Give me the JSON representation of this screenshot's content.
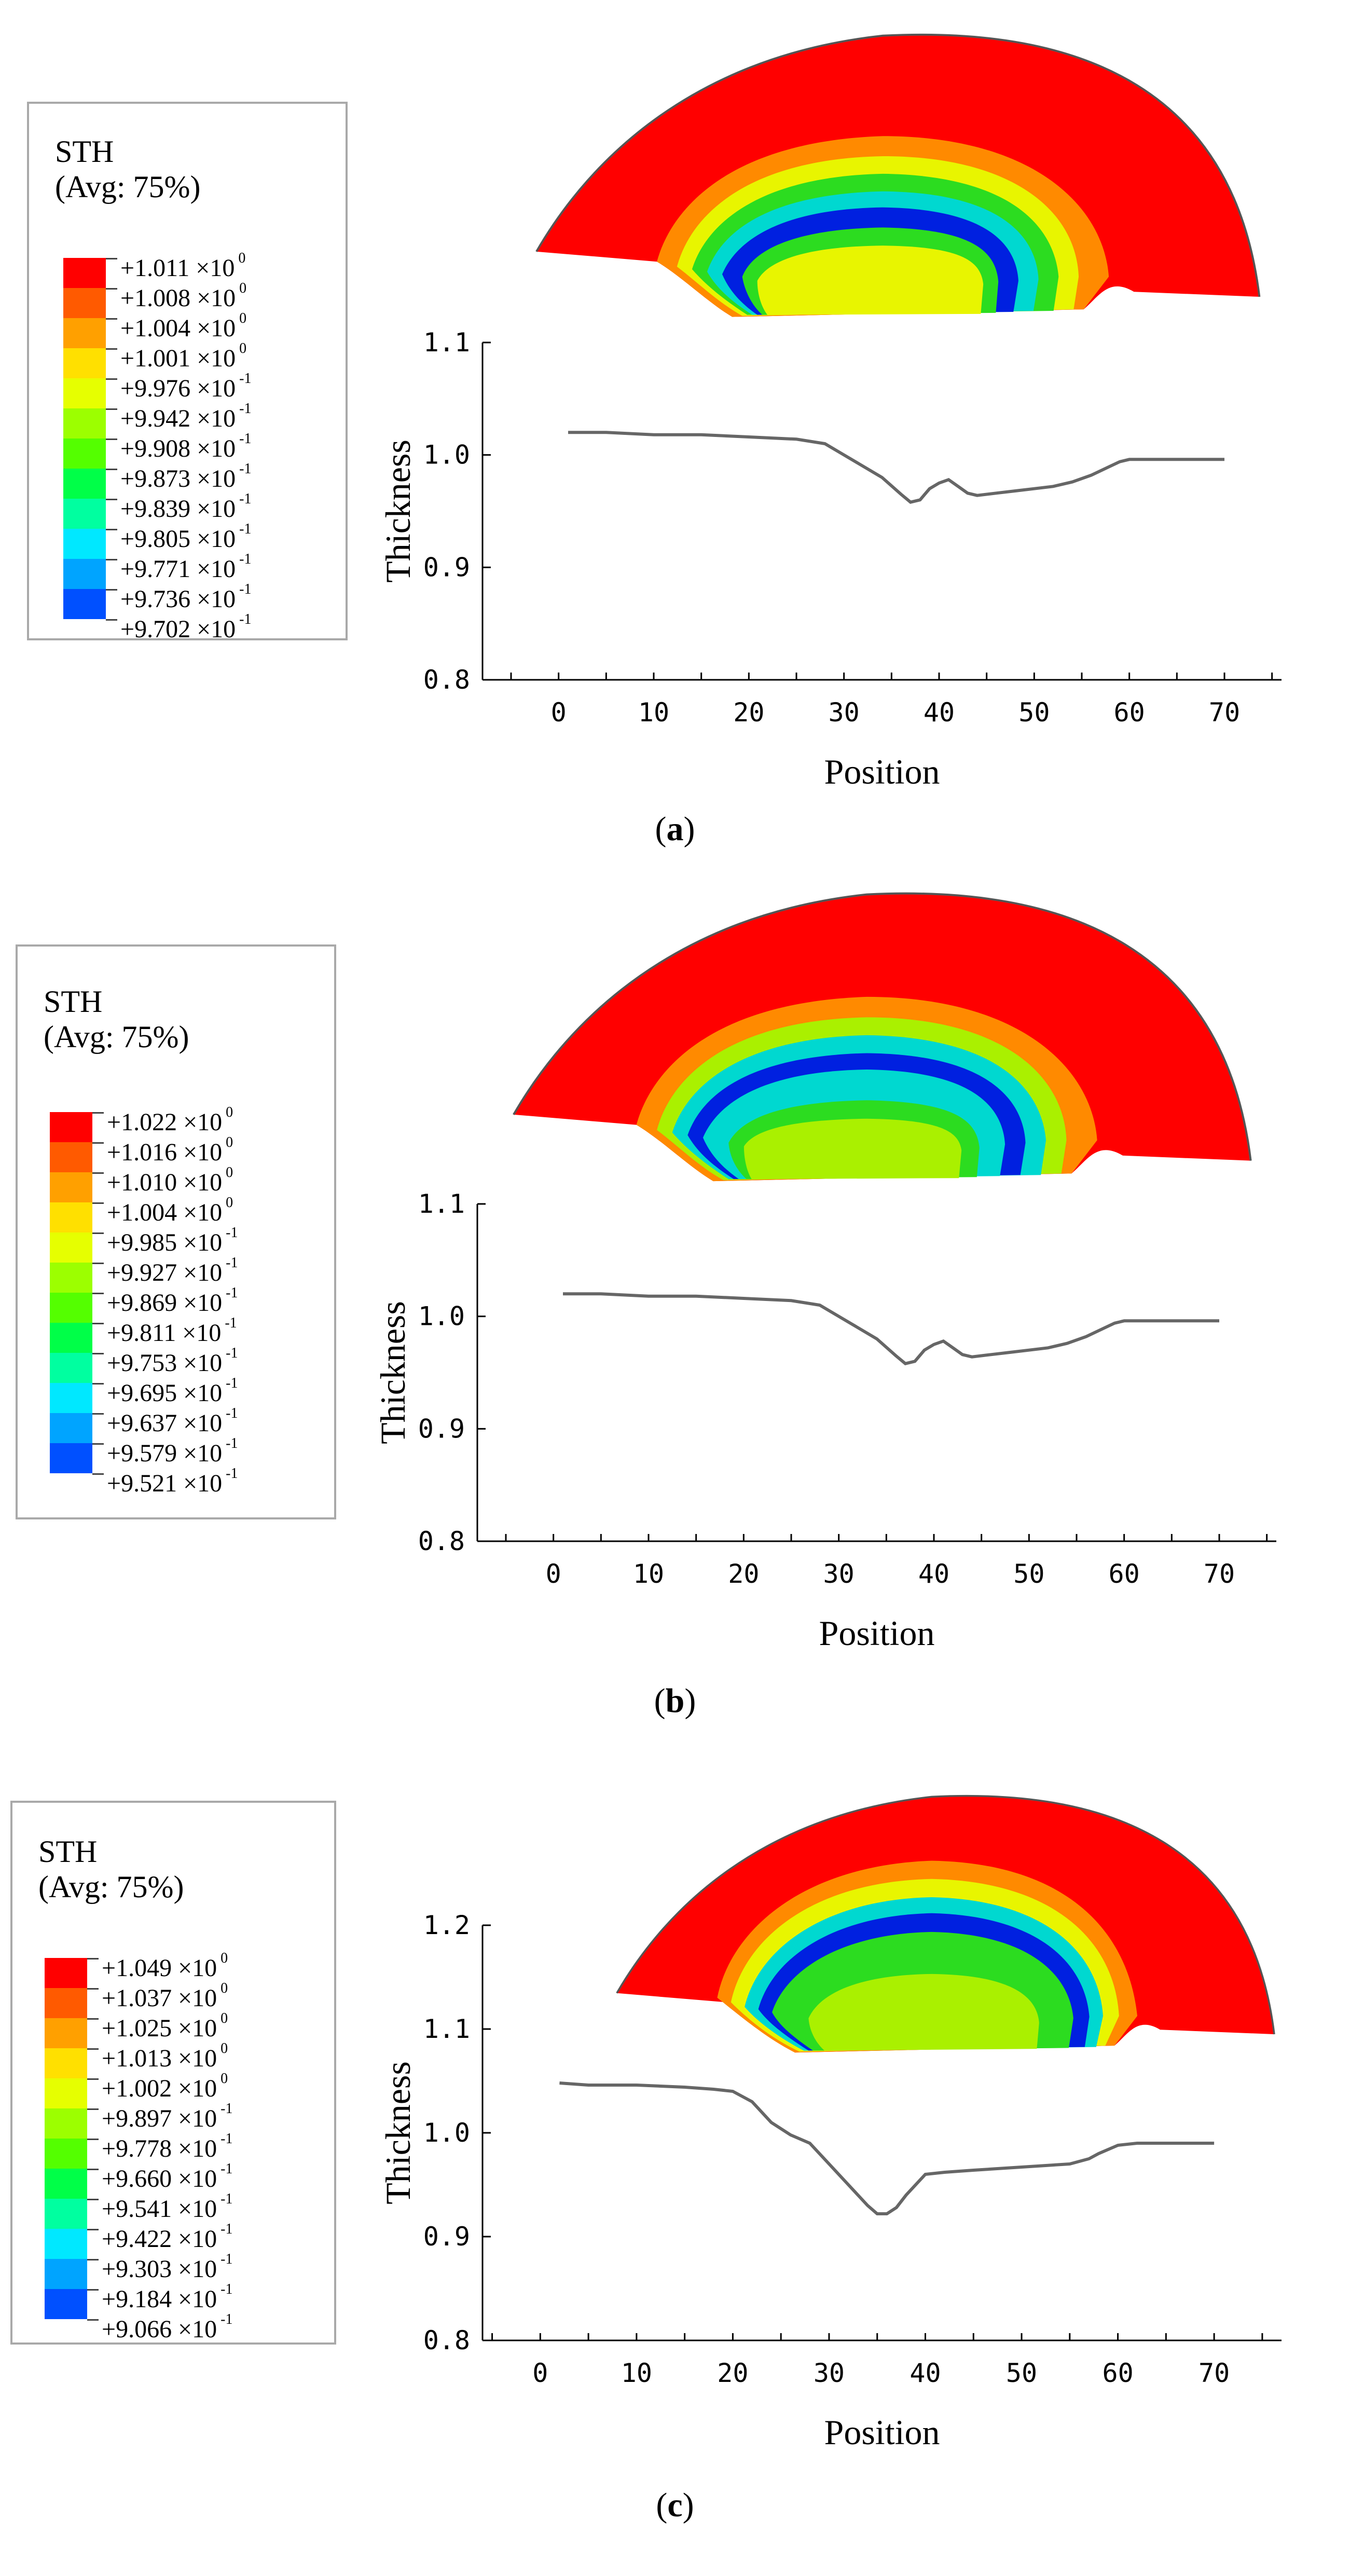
{
  "figure": {
    "panels": [
      {
        "id": "a",
        "caption_open": "(",
        "caption_letter": "a",
        "caption_close": ")",
        "legend": {
          "title": "STH",
          "subtitle": "(Avg: 75%)",
          "entries": [
            {
              "mantissa": "+1.011",
              "exp": "0"
            },
            {
              "mantissa": "+1.008",
              "exp": "0"
            },
            {
              "mantissa": "+1.004",
              "exp": "0"
            },
            {
              "mantissa": "+1.001",
              "exp": "0"
            },
            {
              "mantissa": "+9.976",
              "exp": "-1"
            },
            {
              "mantissa": "+9.942",
              "exp": "-1"
            },
            {
              "mantissa": "+9.908",
              "exp": "-1"
            },
            {
              "mantissa": "+9.873",
              "exp": "-1"
            },
            {
              "mantissa": "+9.839",
              "exp": "-1"
            },
            {
              "mantissa": "+9.805",
              "exp": "-1"
            },
            {
              "mantissa": "+9.771",
              "exp": "-1"
            },
            {
              "mantissa": "+9.736",
              "exp": "-1"
            },
            {
              "mantissa": "+9.702",
              "exp": "-1"
            }
          ]
        }
      },
      {
        "id": "b",
        "caption_open": "(",
        "caption_letter": "b",
        "caption_close": ")",
        "legend": {
          "title": "STH",
          "subtitle": "(Avg: 75%)",
          "entries": [
            {
              "mantissa": "+1.022",
              "exp": "0"
            },
            {
              "mantissa": "+1.016",
              "exp": "0"
            },
            {
              "mantissa": "+1.010",
              "exp": "0"
            },
            {
              "mantissa": "+1.004",
              "exp": "0"
            },
            {
              "mantissa": "+9.985",
              "exp": "-1"
            },
            {
              "mantissa": "+9.927",
              "exp": "-1"
            },
            {
              "mantissa": "+9.869",
              "exp": "-1"
            },
            {
              "mantissa": "+9.811",
              "exp": "-1"
            },
            {
              "mantissa": "+9.753",
              "exp": "-1"
            },
            {
              "mantissa": "+9.695",
              "exp": "-1"
            },
            {
              "mantissa": "+9.637",
              "exp": "-1"
            },
            {
              "mantissa": "+9.579",
              "exp": "-1"
            },
            {
              "mantissa": "+9.521",
              "exp": "-1"
            }
          ]
        }
      },
      {
        "id": "c",
        "caption_open": "(",
        "caption_letter": "c",
        "caption_close": ")",
        "legend": {
          "title": "STH",
          "subtitle": "(Avg: 75%)",
          "entries": [
            {
              "mantissa": "+1.049",
              "exp": "0"
            },
            {
              "mantissa": "+1.037",
              "exp": "0"
            },
            {
              "mantissa": "+1.025",
              "exp": "0"
            },
            {
              "mantissa": "+1.013",
              "exp": "0"
            },
            {
              "mantissa": "+1.002",
              "exp": "0"
            },
            {
              "mantissa": "+9.897",
              "exp": "-1"
            },
            {
              "mantissa": "+9.778",
              "exp": "-1"
            },
            {
              "mantissa": "+9.660",
              "exp": "-1"
            },
            {
              "mantissa": "+9.541",
              "exp": "-1"
            },
            {
              "mantissa": "+9.422",
              "exp": "-1"
            },
            {
              "mantissa": "+9.303",
              "exp": "-1"
            },
            {
              "mantissa": "+9.184",
              "exp": "-1"
            },
            {
              "mantissa": "+9.066",
              "exp": "-1"
            }
          ]
        }
      }
    ],
    "legend_colors": [
      "#ff0000",
      "#ff5a00",
      "#ffa000",
      "#ffe000",
      "#e6ff00",
      "#9cff00",
      "#54ff00",
      "#00ff48",
      "#00ffa0",
      "#00e8ff",
      "#00a4ff",
      "#0050ff",
      "#0000ff"
    ],
    "times_sign": "×10",
    "contour_colors": {
      "red": "#ff0000",
      "orange": "#ff8a00",
      "yellow": "#e8f500",
      "green": "#2cdc20",
      "cyan": "#00d8d0",
      "blue": "#0020e0",
      "lime": "#aaf000"
    }
  },
  "chart_data": [
    {
      "type": "line",
      "panel": "a",
      "xlabel": "Position",
      "ylabel": "Thickness",
      "xticks": [
        "0",
        "10",
        "20",
        "30",
        "40",
        "50",
        "60",
        "70"
      ],
      "yticks": [
        "0.8",
        "0.9",
        "1.0",
        "1.1"
      ],
      "xlim": [
        -8,
        76
      ],
      "ylim": [
        0.8,
        1.1
      ],
      "series": [
        {
          "name": "thickness",
          "x": [
            1,
            5,
            10,
            15,
            20,
            25,
            28,
            30,
            32,
            34,
            36,
            37,
            38,
            39,
            40,
            41,
            42,
            43,
            44,
            46,
            48,
            50,
            52,
            54,
            56,
            58,
            59,
            60,
            62,
            65,
            70
          ],
          "values": [
            1.02,
            1.02,
            1.018,
            1.018,
            1.016,
            1.014,
            1.01,
            1.0,
            0.99,
            0.98,
            0.965,
            0.958,
            0.96,
            0.97,
            0.975,
            0.978,
            0.972,
            0.966,
            0.964,
            0.966,
            0.968,
            0.97,
            0.972,
            0.976,
            0.982,
            0.99,
            0.994,
            0.996,
            0.996,
            0.996,
            0.996
          ]
        }
      ]
    },
    {
      "type": "line",
      "panel": "b",
      "xlabel": "Position",
      "ylabel": "Thickness",
      "xticks": [
        "0",
        "10",
        "20",
        "30",
        "40",
        "50",
        "60",
        "70"
      ],
      "yticks": [
        "0.8",
        "0.9",
        "1.0",
        "1.1"
      ],
      "xlim": [
        -8,
        76
      ],
      "ylim": [
        0.8,
        1.1
      ],
      "series": [
        {
          "name": "thickness",
          "x": [
            1,
            5,
            10,
            15,
            20,
            25,
            28,
            30,
            32,
            34,
            36,
            37,
            38,
            39,
            40,
            41,
            42,
            43,
            44,
            46,
            48,
            50,
            52,
            54,
            56,
            58,
            59,
            60,
            62,
            65,
            70
          ],
          "values": [
            1.02,
            1.02,
            1.018,
            1.018,
            1.016,
            1.014,
            1.01,
            1.0,
            0.99,
            0.98,
            0.965,
            0.958,
            0.96,
            0.97,
            0.975,
            0.978,
            0.972,
            0.966,
            0.964,
            0.966,
            0.968,
            0.97,
            0.972,
            0.976,
            0.982,
            0.99,
            0.994,
            0.996,
            0.996,
            0.996,
            0.996
          ]
        }
      ]
    },
    {
      "type": "line",
      "panel": "c",
      "xlabel": "Position",
      "ylabel": "Thickness",
      "xticks": [
        "0",
        "10",
        "20",
        "30",
        "40",
        "50",
        "60",
        "70"
      ],
      "yticks": [
        "0.8",
        "0.9",
        "1.0",
        "1.1",
        "1.2"
      ],
      "xlim": [
        -6,
        77
      ],
      "ylim": [
        0.8,
        1.2
      ],
      "series": [
        {
          "name": "thickness",
          "x": [
            2,
            5,
            10,
            15,
            18,
            20,
            22,
            24,
            26,
            28,
            30,
            32,
            34,
            35,
            36,
            37,
            38,
            40,
            42,
            45,
            50,
            55,
            57,
            58,
            60,
            62,
            65,
            70
          ],
          "values": [
            1.048,
            1.046,
            1.046,
            1.044,
            1.042,
            1.04,
            1.03,
            1.01,
            0.998,
            0.99,
            0.97,
            0.95,
            0.93,
            0.922,
            0.922,
            0.928,
            0.94,
            0.96,
            0.962,
            0.964,
            0.967,
            0.97,
            0.975,
            0.98,
            0.988,
            0.99,
            0.99,
            0.99
          ]
        }
      ]
    }
  ]
}
